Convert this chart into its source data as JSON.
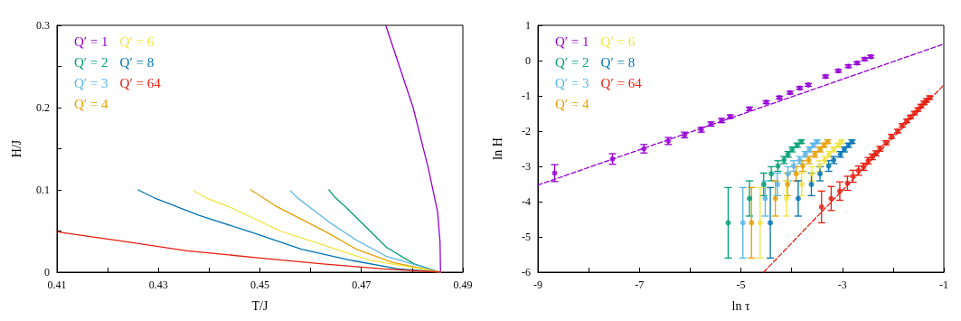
{
  "chart_data": [
    {
      "type": "line",
      "xlabel": "T/J",
      "ylabel": "H/J",
      "xlim": [
        0.41,
        0.49
      ],
      "ylim": [
        0,
        0.3
      ],
      "xticks": [
        0.41,
        {
          "value": 0.42,
          "label": null
        },
        0.43,
        {
          "value": 0.44,
          "label": null
        },
        0.45,
        {
          "value": 0.46,
          "label": null
        },
        0.47,
        {
          "value": 0.48,
          "label": null
        },
        0.49
      ],
      "yticks": [
        0,
        {
          "value": 0.05,
          "label": null
        },
        0.1,
        {
          "value": 0.15,
          "label": null
        },
        0.2,
        {
          "value": 0.25,
          "label": null
        },
        0.3
      ],
      "grid": false,
      "legend": "top left",
      "marker": "none",
      "line_style": "solid",
      "series": [
        {
          "name": "Q′ = 1",
          "color": "#9400d3",
          "x": [
            0.4748,
            0.4802,
            0.4832,
            0.485,
            0.4855,
            0.4856
          ],
          "values": [
            0.3,
            0.2,
            0.126,
            0.074,
            0.037,
            0
          ]
        },
        {
          "name": "Q′ = 2",
          "color": "#009e73",
          "x": [
            0.4648,
            0.4671,
            0.4714,
            0.475,
            0.4804,
            0.4856
          ],
          "values": [
            0.091,
            0.078,
            0.052,
            0.03,
            0.01,
            0
          ]
        },
        {
          "name": "Q′ = 3",
          "color": "#56b4e9",
          "x": [
            0.4573,
            0.4636,
            0.469,
            0.475,
            0.4856
          ],
          "values": [
            0.091,
            0.061,
            0.039,
            0.019,
            0
          ]
        },
        {
          "name": "Q′ = 4",
          "color": "#e69f00",
          "x": [
            0.4505,
            0.4532,
            0.463,
            0.469,
            0.4761,
            0.4856
          ],
          "values": [
            0.091,
            0.08,
            0.049,
            0.028,
            0.012,
            0
          ]
        },
        {
          "name": "Q′ = 6",
          "color": "#f0e442",
          "x": [
            0.4395,
            0.4445,
            0.454,
            0.463,
            0.4713,
            0.4856
          ],
          "values": [
            0.09,
            0.078,
            0.05,
            0.032,
            0.015,
            0
          ]
        },
        {
          "name": "Q′ = 8",
          "color": "#0072b2",
          "x": [
            0.4293,
            0.438,
            0.4481,
            0.4582,
            0.4683,
            0.4773,
            0.4856
          ],
          "values": [
            0.09,
            0.069,
            0.049,
            0.028,
            0.014,
            0.004,
            0
          ]
        },
        {
          "name": "Q′ = 64",
          "color": "#e51e10",
          "x": [
            0.41,
            0.4237,
            0.4356,
            0.4505,
            0.4624,
            0.4743,
            0.4856
          ],
          "values": [
            0.049,
            0.037,
            0.026,
            0.017,
            0.01,
            0.004,
            0
          ]
        },
        {
          "color": "#009e73",
          "line_style": "dotted",
          "x": [
            0.4636,
            0.4648
          ],
          "values": [
            0.1,
            0.091
          ]
        },
        {
          "color": "#56b4e9",
          "line_style": "dotted",
          "x": [
            0.456,
            0.4573
          ],
          "values": [
            0.099,
            0.091
          ]
        },
        {
          "color": "#e69f00",
          "line_style": "dotted",
          "x": [
            0.4482,
            0.4505
          ],
          "values": [
            0.1,
            0.091
          ]
        },
        {
          "color": "#f0e442",
          "line_style": "dotted",
          "x": [
            0.4369,
            0.4395
          ],
          "values": [
            0.099,
            0.09
          ]
        },
        {
          "color": "#0072b2",
          "line_style": "dotted",
          "x": [
            0.426,
            0.4293
          ],
          "values": [
            0.1,
            0.09
          ]
        }
      ]
    },
    {
      "type": "scatter",
      "xlabel": "ln τ",
      "ylabel": "ln H",
      "xlim": [
        -9,
        -1
      ],
      "ylim": [
        -6,
        1
      ],
      "xticks": [
        -9,
        {
          "value": -8,
          "label": null
        },
        -7,
        {
          "value": -6,
          "label": null
        },
        -5,
        {
          "value": -4,
          "label": null
        },
        -3,
        {
          "value": -2,
          "label": null
        },
        -1
      ],
      "yticks": [
        -6,
        -5,
        -4,
        -3,
        -2,
        -1,
        0,
        1
      ],
      "grid": false,
      "legend": "top left",
      "marker": "circle",
      "series": [
        {
          "name": "Q′ = 1",
          "color": "#9400d3",
          "x": [
            -8.67,
            -7.53,
            -6.91,
            -6.43,
            -6.11,
            -5.78,
            -5.59,
            -5.38,
            -5.21,
            -4.83,
            -4.5,
            -4.24,
            -4.03,
            -3.84,
            -3.67,
            -3.33,
            -3.08,
            -2.88,
            -2.71,
            -2.56,
            -2.44
          ],
          "values": [
            -3.19,
            -2.79,
            -2.5,
            -2.28,
            -2.11,
            -1.96,
            -1.8,
            -1.7,
            -1.59,
            -1.37,
            -1.18,
            -1.05,
            -0.91,
            -0.78,
            -0.69,
            -0.45,
            -0.29,
            -0.16,
            -0.07,
            0.04,
            0.11
          ],
          "errors": [
            0.24,
            0.15,
            0.12,
            0.1,
            0.08,
            0.07,
            0.06,
            0.06,
            0.05,
            0.05,
            0.04,
            0.04,
            0.04,
            0.04,
            0.04,
            0.04,
            0.04,
            0.04,
            0.04,
            0.04,
            0.04
          ]
        },
        {
          "name": "Q′ = 2",
          "color": "#009e73",
          "x": [
            -5.25,
            -4.83,
            -4.55,
            -4.4,
            -4.27,
            -4.15,
            -4.07,
            -3.99,
            -3.89,
            -3.81
          ],
          "values": [
            -4.6,
            -3.91,
            -3.51,
            -3.21,
            -2.99,
            -2.82,
            -2.66,
            -2.52,
            -2.4,
            -2.3
          ],
          "errors": [
            1.0,
            0.5,
            0.32,
            0.2,
            0.15,
            0.1,
            0.08,
            0.07,
            0.06,
            0.05
          ]
        },
        {
          "name": "Q′ = 3",
          "color": "#56b4e9",
          "x": [
            -4.96,
            -4.52,
            -4.28,
            -4.07,
            -3.96,
            -3.84,
            -3.73,
            -3.65,
            -3.57,
            -3.5
          ],
          "values": [
            -4.6,
            -3.91,
            -3.51,
            -3.21,
            -2.99,
            -2.82,
            -2.66,
            -2.52,
            -2.4,
            -2.3
          ],
          "errors": [
            1.0,
            0.5,
            0.32,
            0.2,
            0.15,
            0.1,
            0.08,
            0.07,
            0.06,
            0.05
          ]
        },
        {
          "name": "Q′ = 4",
          "color": "#e69f00",
          "x": [
            -4.79,
            -4.32,
            -4.08,
            -3.91,
            -3.78,
            -3.66,
            -3.54,
            -3.44,
            -3.36,
            -3.29
          ],
          "values": [
            -4.6,
            -3.91,
            -3.51,
            -3.21,
            -2.99,
            -2.82,
            -2.66,
            -2.52,
            -2.4,
            -2.3
          ],
          "errors": [
            1.0,
            0.5,
            0.32,
            0.2,
            0.15,
            0.1,
            0.08,
            0.07,
            0.06,
            0.05
          ]
        },
        {
          "name": "Q′ = 6",
          "color": "#f0e442",
          "x": [
            -4.62,
            -4.1,
            -3.8,
            -3.6,
            -3.45,
            -3.35,
            -3.26,
            -3.17,
            -3.08,
            -3.02
          ],
          "values": [
            -4.6,
            -3.91,
            -3.51,
            -3.21,
            -2.99,
            -2.82,
            -2.66,
            -2.52,
            -2.4,
            -2.3
          ],
          "errors": [
            1.0,
            0.5,
            0.32,
            0.2,
            0.15,
            0.1,
            0.08,
            0.07,
            0.06,
            0.05
          ]
        },
        {
          "name": "Q′ = 8",
          "color": "#0072b2",
          "x": [
            -4.42,
            -3.87,
            -3.61,
            -3.44,
            -3.27,
            -3.17,
            -3.04,
            -2.96,
            -2.88,
            -2.81
          ],
          "values": [
            -4.6,
            -3.91,
            -3.51,
            -3.21,
            -2.99,
            -2.82,
            -2.66,
            -2.52,
            -2.4,
            -2.3
          ],
          "errors": [
            1.0,
            0.5,
            0.32,
            0.2,
            0.15,
            0.1,
            0.08,
            0.07,
            0.06,
            0.05
          ]
        },
        {
          "name": "Q′ = 64",
          "color": "#e51e10",
          "x": [
            -3.41,
            -3.22,
            -3.05,
            -2.9,
            -2.79,
            -2.68,
            -2.58,
            -2.49,
            -2.41,
            -2.34,
            -2.26,
            -2.14,
            -2.03,
            -1.91,
            -1.82,
            -1.73,
            -1.66,
            -1.58,
            -1.51,
            -1.45,
            -1.39,
            -1.34,
            -1.28
          ],
          "values": [
            -4.15,
            -3.91,
            -3.7,
            -3.48,
            -3.28,
            -3.12,
            -3.01,
            -2.84,
            -2.73,
            -2.63,
            -2.5,
            -2.33,
            -2.15,
            -2.0,
            -1.84,
            -1.71,
            -1.6,
            -1.49,
            -1.39,
            -1.29,
            -1.2,
            -1.13,
            -1.05
          ],
          "errors": [
            0.45,
            0.34,
            0.26,
            0.2,
            0.17,
            0.13,
            0.1,
            0.09,
            0.08,
            0.07,
            0.07,
            0.06,
            0.06,
            0.05,
            0.05,
            0.05,
            0.05,
            0.05,
            0.05,
            0.05,
            0.05,
            0.05,
            0.05
          ]
        },
        {
          "type": "line",
          "marker": "none",
          "line_style": "dashed",
          "color": "#9400d3",
          "x": [
            -9,
            -1
          ],
          "values": [
            -3.53,
            0.47
          ]
        },
        {
          "type": "line",
          "marker": "none",
          "line_style": "dashed",
          "color": "#e51e10",
          "x": [
            -4.55,
            -1
          ],
          "values": [
            -6,
            -0.69
          ]
        }
      ]
    }
  ]
}
